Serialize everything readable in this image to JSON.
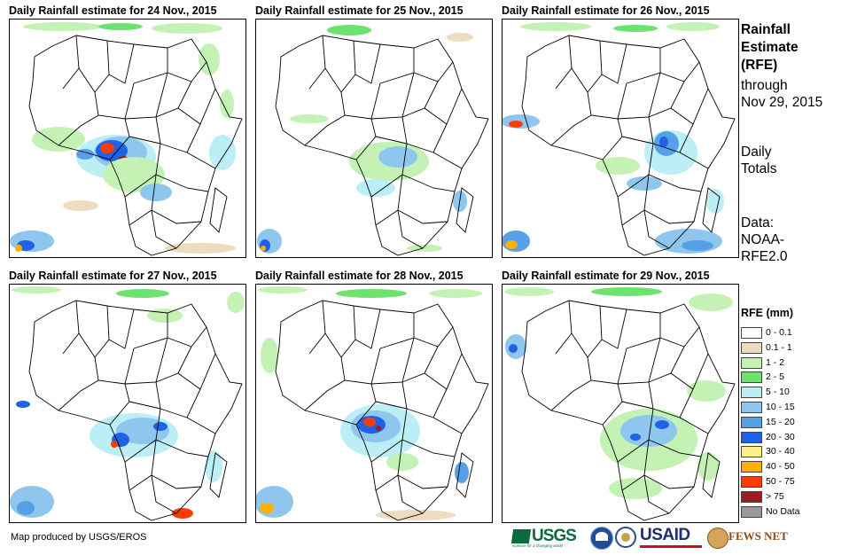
{
  "panels": [
    {
      "title": "Daily Rainfall estimate for 24 Nov., 2015"
    },
    {
      "title": "Daily Rainfall estimate for 25 Nov., 2015"
    },
    {
      "title": "Daily Rainfall estimate for 26 Nov., 2015"
    },
    {
      "title": "Daily Rainfall estimate for 27 Nov., 2015"
    },
    {
      "title": "Daily Rainfall estimate for 28 Nov., 2015"
    },
    {
      "title": "Daily Rainfall estimate for 29 Nov., 2015"
    }
  ],
  "side": {
    "title_line1": "Rainfall",
    "title_line2": "Estimate",
    "title_line3": "(RFE)",
    "through_line1": "through",
    "through_line2": "Nov 29, 2015",
    "daily_line1": "Daily",
    "daily_line2": "Totals",
    "data_line1": "Data:",
    "data_line2": "NOAA-",
    "data_line3": "RFE2.0"
  },
  "legend": {
    "title": "RFE (mm)",
    "classes": [
      {
        "label": "0 - 0.1",
        "color": "#ffffff"
      },
      {
        "label": "0.1 - 1",
        "color": "#eedcc0"
      },
      {
        "label": "1 - 2",
        "color": "#c4f2b4"
      },
      {
        "label": "2 - 5",
        "color": "#6ee26e"
      },
      {
        "label": "5 - 10",
        "color": "#bceef6"
      },
      {
        "label": "10 - 15",
        "color": "#8ec6ee"
      },
      {
        "label": "15 - 20",
        "color": "#56a0e8"
      },
      {
        "label": "20 - 30",
        "color": "#1f62e6"
      },
      {
        "label": "30 - 40",
        "color": "#fff08c"
      },
      {
        "label": "40 - 50",
        "color": "#ffb000"
      },
      {
        "label": "50 - 75",
        "color": "#ff3c00"
      },
      {
        "label": "> 75",
        "color": "#a01c1c"
      },
      {
        "label": "No Data",
        "color": "#9a9a9a"
      }
    ]
  },
  "footer": {
    "credit": "Map produced by USGS/EROS",
    "logos": {
      "usgs": "USGS",
      "usgs_tagline": "science for a changing world",
      "usaid": "USAID",
      "fews": "FEWS NET"
    }
  }
}
